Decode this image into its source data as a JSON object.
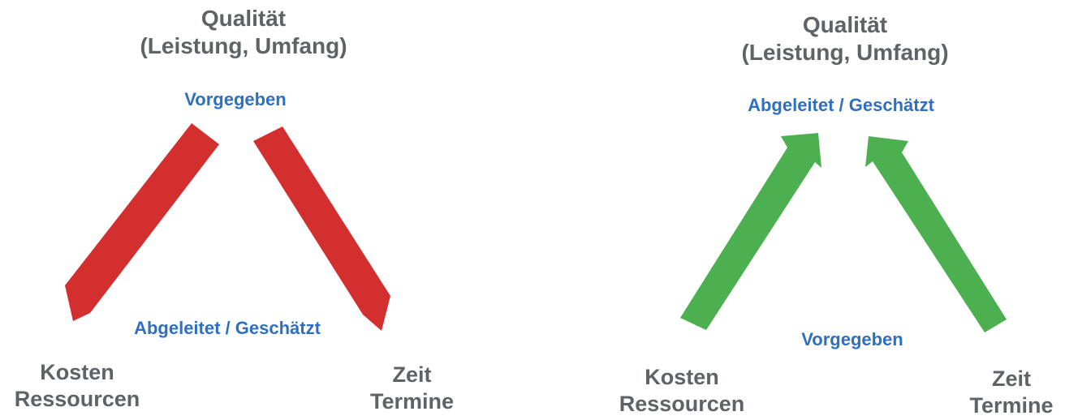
{
  "diagrams": [
    {
      "top": {
        "line1": "Qualität",
        "line2": "(Leistung, Umfang)"
      },
      "top_status": "Vorgegeben",
      "bottom_status": "Abgeleitet / Geschätzt",
      "left_corner": {
        "line1": "Kosten",
        "line2": "Ressourcen"
      },
      "right_corner": {
        "line1": "Zeit",
        "line2": "Termine"
      },
      "arrow_color": "#d32f2f",
      "arrow_direction": "from top to bottom corners"
    },
    {
      "top": {
        "line1": "Qualität",
        "line2": "(Leistung, Umfang)"
      },
      "top_status": "Abgeleitet / Geschätzt",
      "bottom_status": "Vorgegeben",
      "left_corner": {
        "line1": "Kosten",
        "line2": "Ressourcen"
      },
      "right_corner": {
        "line1": "Zeit",
        "line2": "Termine"
      },
      "arrow_color": "#4caf50",
      "arrow_direction": "from bottom corners to top"
    }
  ],
  "colors": {
    "label_gray": "#5f6368",
    "status_blue": "#2f6fc0"
  }
}
